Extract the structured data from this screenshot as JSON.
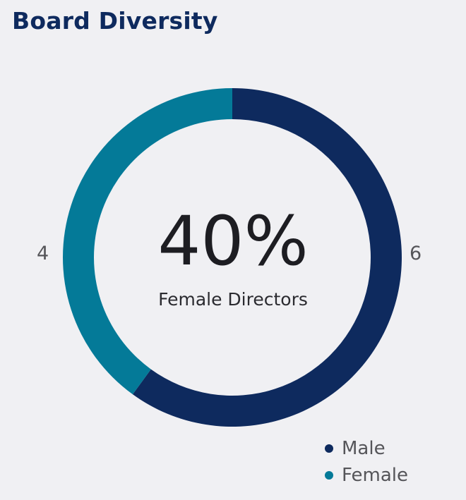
{
  "title": "Board Diversity",
  "center": {
    "value": "40%",
    "label": "Female Directors"
  },
  "chart_data": {
    "type": "pie",
    "variant": "donut",
    "title": "Board Diversity",
    "categories": [
      "Male",
      "Female"
    ],
    "values": [
      6,
      4
    ],
    "colors": [
      "#0e2a5e",
      "#047a98"
    ],
    "data_labels": [
      "6",
      "4"
    ],
    "legend": {
      "position": "bottom-right",
      "entries": [
        "Male",
        "Female"
      ]
    }
  }
}
